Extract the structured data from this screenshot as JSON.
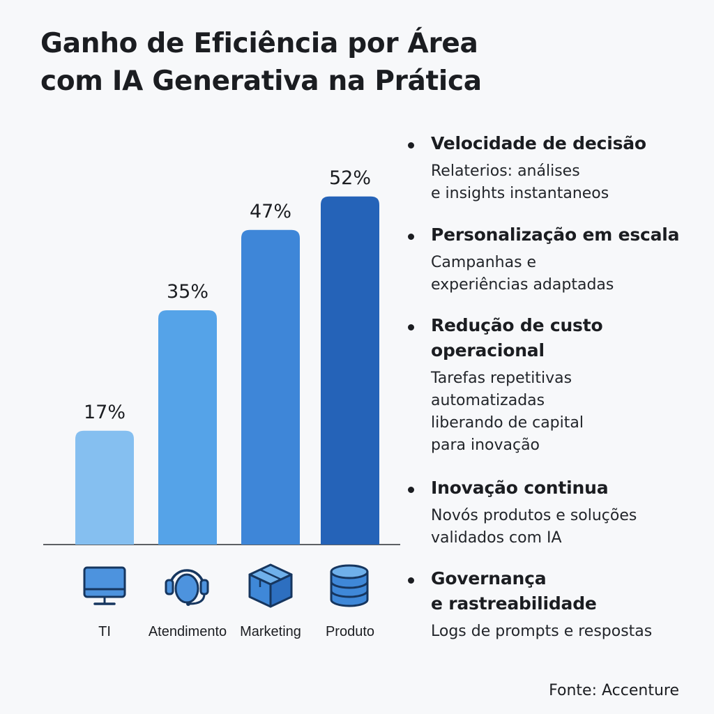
{
  "header": {
    "title_line1": "Ganho de Eficiência por Área",
    "title_line2": "com IA Generativa na Prática"
  },
  "chart_data": {
    "type": "bar",
    "title": "Ganho de Eficiência por Área com IA Generativa na Prática",
    "categories": [
      "TI",
      "Atendimento",
      "Marketing",
      "Produto"
    ],
    "values": [
      17,
      35,
      47,
      52
    ],
    "value_labels": [
      "17%",
      "35%",
      "47%",
      "52%"
    ],
    "bar_colors": [
      "#85bff0",
      "#55a3e8",
      "#3e86d8",
      "#2563b8"
    ],
    "icons": [
      "monitor-icon",
      "headset-icon",
      "box-icon",
      "database-icon"
    ],
    "grid": false,
    "legend": "none"
  },
  "bullets": [
    {
      "head": "Velocidade de decisão",
      "desc": "Relaterios: análises\ne insights instantaneos"
    },
    {
      "head": "Personalização em escala",
      "desc": "Campanhas e\nexperiências adaptadas"
    },
    {
      "head": "Redução de custo\noperacional",
      "desc": "Tarefas repetitivas\nautomatizadas\nliberando de  capital\npara inovação"
    },
    {
      "head": "Inovação continua",
      "desc": "Novós produtos e soluções\nvalidados com IA"
    },
    {
      "head": "Governança\ne rastreabilidade",
      "desc": "Logs de prompts e respostas"
    }
  ],
  "footer": {
    "source": "Fonte: Accenture"
  }
}
